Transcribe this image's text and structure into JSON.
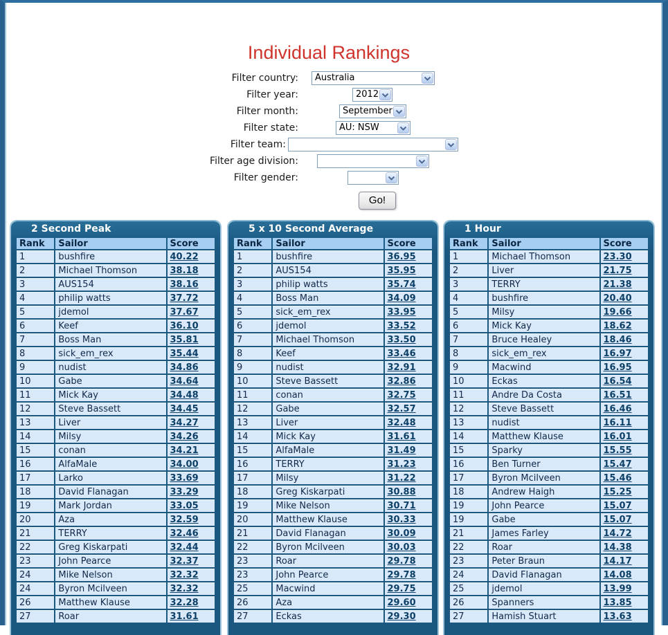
{
  "header": {
    "title": "Individual Rankings"
  },
  "filters": {
    "rows": [
      {
        "label": "Filter country:",
        "value": "Australia"
      },
      {
        "label": "Filter year:",
        "value": "2012"
      },
      {
        "label": "Filter month:",
        "value": "September"
      },
      {
        "label": "Filter state:",
        "value": "AU: NSW"
      },
      {
        "label": "Filter team:",
        "value": ""
      },
      {
        "label": "Filter age division:",
        "value": ""
      },
      {
        "label": "Filter gender:",
        "value": ""
      }
    ],
    "go_label": "Go!"
  },
  "columns": [
    "Rank",
    "Sailor",
    "Score"
  ],
  "tables": [
    {
      "title": "2 Second Peak",
      "rows": [
        [
          "1",
          "bushfire",
          "40.22"
        ],
        [
          "2",
          "Michael Thomson",
          "38.18"
        ],
        [
          "3",
          "AUS154",
          "38.16"
        ],
        [
          "4",
          "philip watts",
          "37.72"
        ],
        [
          "5",
          "jdemol",
          "37.67"
        ],
        [
          "6",
          "Keef",
          "36.10"
        ],
        [
          "7",
          "Boss Man",
          "35.81"
        ],
        [
          "8",
          "sick_em_rex",
          "35.44"
        ],
        [
          "9",
          "nudist",
          "34.86"
        ],
        [
          "10",
          "Gabe",
          "34.64"
        ],
        [
          "11",
          "Mick Kay",
          "34.48"
        ],
        [
          "12",
          "Steve Bassett",
          "34.45"
        ],
        [
          "13",
          "Liver",
          "34.27"
        ],
        [
          "14",
          "Milsy",
          "34.26"
        ],
        [
          "15",
          "conan",
          "34.21"
        ],
        [
          "16",
          "AlfaMale",
          "34.00"
        ],
        [
          "17",
          "Larko",
          "33.69"
        ],
        [
          "18",
          "David Flanagan",
          "33.29"
        ],
        [
          "19",
          "Mark Jordan",
          "33.05"
        ],
        [
          "20",
          "Aza",
          "32.59"
        ],
        [
          "21",
          "TERRY",
          "32.46"
        ],
        [
          "22",
          "Greg Kiskarpati",
          "32.44"
        ],
        [
          "23",
          "John Pearce",
          "32.37"
        ],
        [
          "24",
          "Mike Nelson",
          "32.32"
        ],
        [
          "24",
          "Byron Mcilveen",
          "32.32"
        ],
        [
          "26",
          "Matthew Klause",
          "32.28"
        ],
        [
          "27",
          "Roar",
          "31.61"
        ]
      ]
    },
    {
      "title": "5 x 10 Second Average",
      "rows": [
        [
          "1",
          "bushfire",
          "36.95"
        ],
        [
          "2",
          "AUS154",
          "35.95"
        ],
        [
          "3",
          "philip watts",
          "35.74"
        ],
        [
          "4",
          "Boss Man",
          "34.09"
        ],
        [
          "5",
          "sick_em_rex",
          "33.95"
        ],
        [
          "6",
          "jdemol",
          "33.52"
        ],
        [
          "7",
          "Michael Thomson",
          "33.50"
        ],
        [
          "8",
          "Keef",
          "33.46"
        ],
        [
          "9",
          "nudist",
          "32.91"
        ],
        [
          "10",
          "Steve Bassett",
          "32.86"
        ],
        [
          "11",
          "conan",
          "32.75"
        ],
        [
          "12",
          "Gabe",
          "32.57"
        ],
        [
          "13",
          "Liver",
          "32.48"
        ],
        [
          "14",
          "Mick Kay",
          "31.61"
        ],
        [
          "15",
          "AlfaMale",
          "31.49"
        ],
        [
          "16",
          "TERRY",
          "31.23"
        ],
        [
          "17",
          "Milsy",
          "31.22"
        ],
        [
          "18",
          "Greg Kiskarpati",
          "30.88"
        ],
        [
          "19",
          "Mike Nelson",
          "30.71"
        ],
        [
          "20",
          "Matthew Klause",
          "30.33"
        ],
        [
          "21",
          "David Flanagan",
          "30.09"
        ],
        [
          "22",
          "Byron Mcilveen",
          "30.03"
        ],
        [
          "23",
          "Roar",
          "29.78"
        ],
        [
          "23",
          "John Pearce",
          "29.78"
        ],
        [
          "25",
          "Macwind",
          "29.75"
        ],
        [
          "26",
          "Aza",
          "29.60"
        ],
        [
          "27",
          "Eckas",
          "29.30"
        ]
      ]
    },
    {
      "title": "1 Hour",
      "rows": [
        [
          "1",
          "Michael Thomson",
          "23.30"
        ],
        [
          "2",
          "Liver",
          "21.75"
        ],
        [
          "3",
          "TERRY",
          "21.38"
        ],
        [
          "4",
          "bushfire",
          "20.40"
        ],
        [
          "5",
          "Milsy",
          "19.66"
        ],
        [
          "6",
          "Mick Kay",
          "18.62"
        ],
        [
          "7",
          "Bruce Healey",
          "18.46"
        ],
        [
          "8",
          "sick_em_rex",
          "16.97"
        ],
        [
          "9",
          "Macwind",
          "16.95"
        ],
        [
          "10",
          "Eckas",
          "16.54"
        ],
        [
          "11",
          "Andre Da Costa",
          "16.51"
        ],
        [
          "12",
          "Steve Bassett",
          "16.46"
        ],
        [
          "13",
          "nudist",
          "16.11"
        ],
        [
          "14",
          "Matthew Klause",
          "16.01"
        ],
        [
          "15",
          "Sparky",
          "15.55"
        ],
        [
          "16",
          "Ben Turner",
          "15.47"
        ],
        [
          "17",
          "Byron Mcilveen",
          "15.46"
        ],
        [
          "18",
          "Andrew Haigh",
          "15.25"
        ],
        [
          "19",
          "John Pearce",
          "15.07"
        ],
        [
          "19",
          "Gabe",
          "15.07"
        ],
        [
          "21",
          "James Farley",
          "14.72"
        ],
        [
          "22",
          "Roar",
          "14.38"
        ],
        [
          "23",
          "Peter Braun",
          "14.17"
        ],
        [
          "24",
          "David Flanagan",
          "14.08"
        ],
        [
          "25",
          "jdemol",
          "13.99"
        ],
        [
          "26",
          "Spanners",
          "13.85"
        ],
        [
          "27",
          "Hamish Stuart",
          "13.63"
        ]
      ]
    }
  ],
  "colors": {
    "title_red": "#cf342c",
    "panel_blue": "#1a5880",
    "header_cell_blue": "#a6cef2",
    "cell_blue": "#d9e9f9",
    "score_link_blue": "#0d4068"
  }
}
